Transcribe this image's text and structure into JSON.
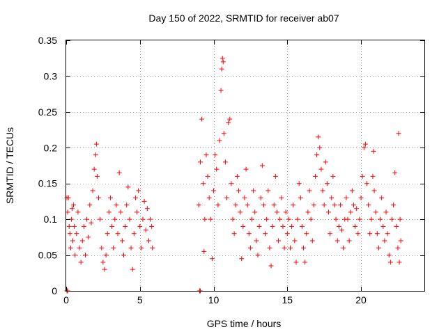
{
  "chart_data": {
    "type": "scatter",
    "title": "Day 150 of 2022, SRMTID for receiver ab07",
    "xlabel": "GPS time / hours",
    "ylabel": "SRMTID / TECUs",
    "xlim": [
      0,
      24.3
    ],
    "ylim": [
      0,
      0.35
    ],
    "x_ticks": [
      0,
      5,
      10,
      15,
      20
    ],
    "x_tick_labels": [
      "0",
      "5",
      "10",
      "15",
      "20"
    ],
    "y_ticks": [
      0,
      0.05,
      0.1,
      0.15,
      0.2,
      0.25,
      0.3,
      0.35
    ],
    "y_tick_labels": [
      "0",
      "0.05",
      "0.1",
      "0.15",
      "0.2",
      "0.25",
      "0.3",
      "0.35"
    ],
    "grid": true,
    "marker": "+",
    "color": "#ff0000",
    "series": [
      {
        "name": "SRMTID",
        "points": [
          [
            0.05,
            0.0
          ],
          [
            0.1,
            0.0
          ],
          [
            9.05,
            0.0
          ],
          [
            9.1,
            0.0
          ],
          [
            0.05,
            0.13
          ],
          [
            0.1,
            0.11
          ],
          [
            0.15,
            0.13
          ],
          [
            0.2,
            0.09
          ],
          [
            0.25,
            0.08
          ],
          [
            0.3,
            0.06
          ],
          [
            0.35,
            0.1
          ],
          [
            0.4,
            0.115
          ],
          [
            0.45,
            0.07
          ],
          [
            0.5,
            0.12
          ],
          [
            0.55,
            0.09
          ],
          [
            0.6,
            0.05
          ],
          [
            0.7,
            0.08
          ],
          [
            0.8,
            0.11
          ],
          [
            0.9,
            0.06
          ],
          [
            1.0,
            0.04
          ],
          [
            1.1,
            0.07
          ],
          [
            1.2,
            0.09
          ],
          [
            1.3,
            0.05
          ],
          [
            1.4,
            0.1
          ],
          [
            1.5,
            0.075
          ],
          [
            1.6,
            0.12
          ],
          [
            1.7,
            0.095
          ],
          [
            1.8,
            0.14
          ],
          [
            1.9,
            0.17
          ],
          [
            2.0,
            0.19
          ],
          [
            2.05,
            0.205
          ],
          [
            2.1,
            0.16
          ],
          [
            2.2,
            0.13
          ],
          [
            2.3,
            0.1
          ],
          [
            2.4,
            0.06
          ],
          [
            2.5,
            0.04
          ],
          [
            2.6,
            0.03
          ],
          [
            2.7,
            0.05
          ],
          [
            2.8,
            0.08
          ],
          [
            2.9,
            0.11
          ],
          [
            3.0,
            0.13
          ],
          [
            3.1,
            0.09
          ],
          [
            3.2,
            0.06
          ],
          [
            3.3,
            0.1
          ],
          [
            3.4,
            0.12
          ],
          [
            3.5,
            0.08
          ],
          [
            3.6,
            0.165
          ],
          [
            3.7,
            0.11
          ],
          [
            3.8,
            0.07
          ],
          [
            3.9,
            0.05
          ],
          [
            4.0,
            0.09
          ],
          [
            4.1,
            0.12
          ],
          [
            4.2,
            0.145
          ],
          [
            4.3,
            0.1
          ],
          [
            4.4,
            0.06
          ],
          [
            4.5,
            0.03
          ],
          [
            4.6,
            0.08
          ],
          [
            4.7,
            0.13
          ],
          [
            4.8,
            0.11
          ],
          [
            4.9,
            0.14
          ],
          [
            5.0,
            0.09
          ],
          [
            5.1,
            0.06
          ],
          [
            5.2,
            0.1
          ],
          [
            5.3,
            0.125
          ],
          [
            5.4,
            0.085
          ],
          [
            5.5,
            0.115
          ],
          [
            5.6,
            0.07
          ],
          [
            5.7,
            0.1
          ],
          [
            5.8,
            0.09
          ],
          [
            5.85,
            0.06
          ],
          [
            9.0,
            0.12
          ],
          [
            9.1,
            0.18
          ],
          [
            9.2,
            0.24
          ],
          [
            9.3,
            0.15
          ],
          [
            9.35,
            0.055
          ],
          [
            9.4,
            0.1
          ],
          [
            9.5,
            0.19
          ],
          [
            9.6,
            0.16
          ],
          [
            9.7,
            0.13
          ],
          [
            9.8,
            0.1
          ],
          [
            9.9,
            0.045
          ],
          [
            10.0,
            0.14
          ],
          [
            10.1,
            0.19
          ],
          [
            10.2,
            0.17
          ],
          [
            10.3,
            0.12
          ],
          [
            10.4,
            0.21
          ],
          [
            10.5,
            0.28
          ],
          [
            10.55,
            0.31
          ],
          [
            10.6,
            0.325
          ],
          [
            10.65,
            0.32
          ],
          [
            10.7,
            0.22
          ],
          [
            10.8,
            0.18
          ],
          [
            10.9,
            0.13
          ],
          [
            11.0,
            0.235
          ],
          [
            11.1,
            0.24
          ],
          [
            11.2,
            0.15
          ],
          [
            11.3,
            0.1
          ],
          [
            11.4,
            0.08
          ],
          [
            11.5,
            0.12
          ],
          [
            11.6,
            0.16
          ],
          [
            11.7,
            0.14
          ],
          [
            11.8,
            0.11
          ],
          [
            11.9,
            0.045
          ],
          [
            12.0,
            0.09
          ],
          [
            12.1,
            0.13
          ],
          [
            12.2,
            0.17
          ],
          [
            12.3,
            0.12
          ],
          [
            12.4,
            0.08
          ],
          [
            12.5,
            0.06
          ],
          [
            12.6,
            0.1
          ],
          [
            12.7,
            0.14
          ],
          [
            12.8,
            0.11
          ],
          [
            12.9,
            0.07
          ],
          [
            13.0,
            0.05
          ],
          [
            13.1,
            0.09
          ],
          [
            13.2,
            0.13
          ],
          [
            13.3,
            0.175
          ],
          [
            13.4,
            0.12
          ],
          [
            13.5,
            0.08
          ],
          [
            13.6,
            0.1
          ],
          [
            13.7,
            0.14
          ],
          [
            13.8,
            0.06
          ],
          [
            13.9,
            0.035
          ],
          [
            14.0,
            0.09
          ],
          [
            14.1,
            0.12
          ],
          [
            14.2,
            0.16
          ],
          [
            14.3,
            0.11
          ],
          [
            14.4,
            0.07
          ],
          [
            14.5,
            0.1
          ],
          [
            14.6,
            0.13
          ],
          [
            14.7,
            0.09
          ],
          [
            14.8,
            0.06
          ],
          [
            14.9,
            0.11
          ],
          [
            15.0,
            0.08
          ],
          [
            15.1,
            0.1
          ],
          [
            15.2,
            0.06
          ],
          [
            15.3,
            0.09
          ],
          [
            15.4,
            0.12
          ],
          [
            15.5,
            0.07
          ],
          [
            15.6,
            0.04
          ],
          [
            15.7,
            0.1
          ],
          [
            15.8,
            0.15
          ],
          [
            15.9,
            0.13
          ],
          [
            16.0,
            0.09
          ],
          [
            16.1,
            0.06
          ],
          [
            16.2,
            0.04
          ],
          [
            16.3,
            0.08
          ],
          [
            16.4,
            0.11
          ],
          [
            16.5,
            0.14
          ],
          [
            16.6,
            0.1
          ],
          [
            16.7,
            0.07
          ],
          [
            16.8,
            0.12
          ],
          [
            16.9,
            0.16
          ],
          [
            17.0,
            0.19
          ],
          [
            17.1,
            0.215
          ],
          [
            17.2,
            0.2
          ],
          [
            17.3,
            0.17
          ],
          [
            17.4,
            0.14
          ],
          [
            17.5,
            0.12
          ],
          [
            17.6,
            0.18
          ],
          [
            17.7,
            0.15
          ],
          [
            17.8,
            0.11
          ],
          [
            17.9,
            0.08
          ],
          [
            18.0,
            0.13
          ],
          [
            18.1,
            0.16
          ],
          [
            18.2,
            0.12
          ],
          [
            18.3,
            0.1
          ],
          [
            18.4,
            0.07
          ],
          [
            18.5,
            0.09
          ],
          [
            18.6,
            0.12
          ],
          [
            18.7,
            0.085
          ],
          [
            18.8,
            0.06
          ],
          [
            18.9,
            0.1
          ],
          [
            19.0,
            0.13
          ],
          [
            19.1,
            0.1
          ],
          [
            19.2,
            0.07
          ],
          [
            19.3,
            0.11
          ],
          [
            19.4,
            0.14
          ],
          [
            19.5,
            0.12
          ],
          [
            19.6,
            0.09
          ],
          [
            19.7,
            0.115
          ],
          [
            19.8,
            0.08
          ],
          [
            19.9,
            0.1
          ],
          [
            20.0,
            0.13
          ],
          [
            20.1,
            0.16
          ],
          [
            20.2,
            0.2
          ],
          [
            20.3,
            0.205
          ],
          [
            20.4,
            0.15
          ],
          [
            20.5,
            0.12
          ],
          [
            20.6,
            0.08
          ],
          [
            20.7,
            0.1
          ],
          [
            20.8,
            0.16
          ],
          [
            20.85,
            0.195
          ],
          [
            20.9,
            0.14
          ],
          [
            21.0,
            0.11
          ],
          [
            21.1,
            0.08
          ],
          [
            21.2,
            0.06
          ],
          [
            21.3,
            0.1
          ],
          [
            21.4,
            0.13
          ],
          [
            21.5,
            0.09
          ],
          [
            21.6,
            0.07
          ],
          [
            21.7,
            0.11
          ],
          [
            21.8,
            0.08
          ],
          [
            21.9,
            0.05
          ],
          [
            22.0,
            0.04
          ],
          [
            22.1,
            0.1
          ],
          [
            22.2,
            0.12
          ],
          [
            22.3,
            0.165
          ],
          [
            22.4,
            0.09
          ],
          [
            22.5,
            0.06
          ],
          [
            22.55,
            0.22
          ],
          [
            22.6,
            0.04
          ],
          [
            22.65,
            0.1
          ],
          [
            22.7,
            0.07
          ]
        ]
      }
    ]
  }
}
